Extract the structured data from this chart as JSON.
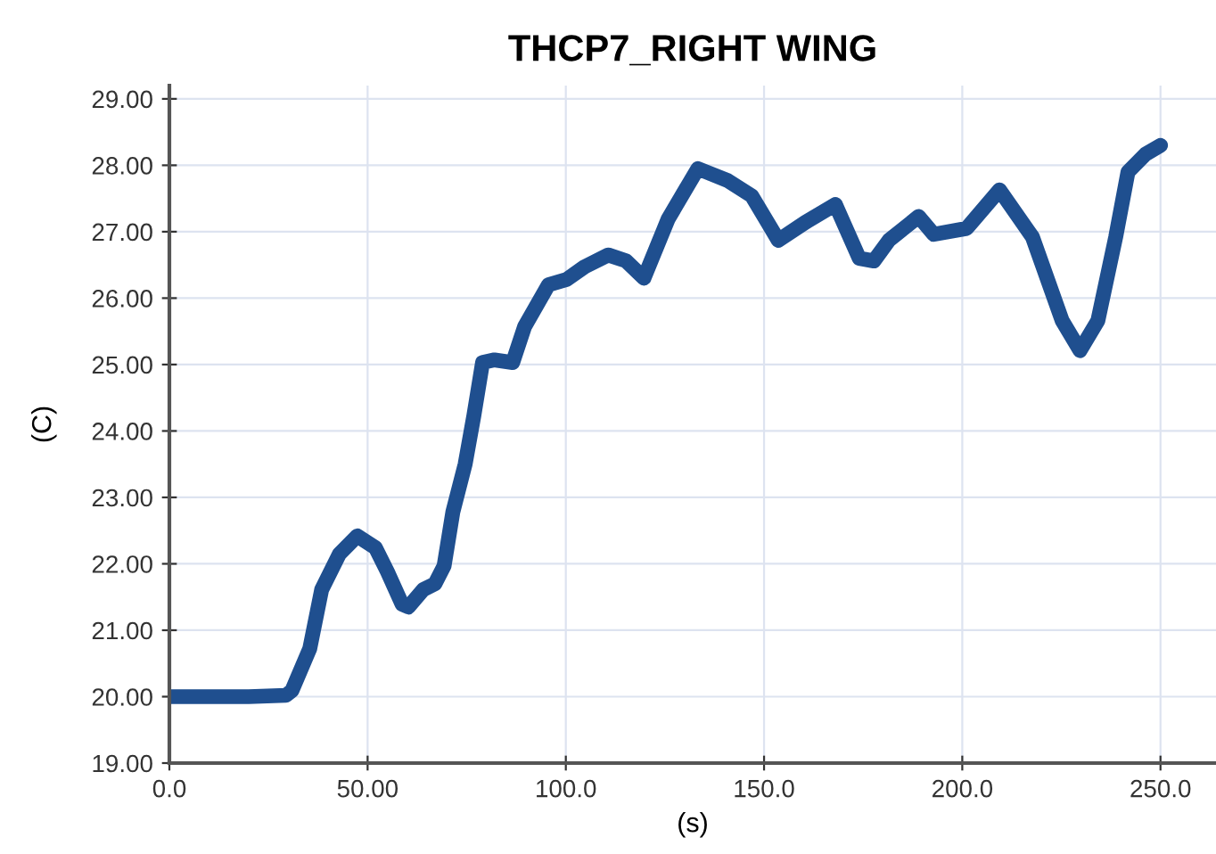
{
  "chart_data": {
    "type": "line",
    "title": "THCP7_RIGHT WING",
    "xlabel": "(s)",
    "ylabel": "(C)",
    "x": [
      0,
      10,
      20,
      29.4,
      30.9,
      35.4,
      38.4,
      42.9,
      47.4,
      52,
      55,
      58.7,
      60.3,
      64,
      67,
      69.3,
      71.5,
      74.6,
      76.8,
      79,
      82,
      86.6,
      89.6,
      95.6,
      100.2,
      104.7,
      110.7,
      115.2,
      119.7,
      125.8,
      133.3,
      140.8,
      146.9,
      153.6,
      160.4,
      168,
      174,
      177.7,
      181.5,
      189,
      192.8,
      201.1,
      209.4,
      217.7,
      225.2,
      229.7,
      234.2,
      238.7,
      241.8,
      246.3,
      250
    ],
    "series": [
      {
        "color": "#1f4f8f",
        "values": [
          20.0,
          20.0,
          20.0,
          20.02,
          20.09,
          20.72,
          21.61,
          22.15,
          22.42,
          22.24,
          21.88,
          21.39,
          21.35,
          21.61,
          21.7,
          21.97,
          22.78,
          23.5,
          24.23,
          25.03,
          25.07,
          25.03,
          25.57,
          26.2,
          26.28,
          26.47,
          26.65,
          26.56,
          26.3,
          27.19,
          27.95,
          27.77,
          27.54,
          26.87,
          27.14,
          27.41,
          26.6,
          26.56,
          26.87,
          27.23,
          26.96,
          27.05,
          27.63,
          26.92,
          25.66,
          25.21,
          25.66,
          26.92,
          27.9,
          28.17,
          28.3
        ]
      }
    ],
    "xlim": [
      0,
      264
    ],
    "ylim": [
      19,
      29.2
    ],
    "xticks": [
      {
        "value": 0,
        "label": "0.0"
      },
      {
        "value": 50,
        "label": "50.00"
      },
      {
        "value": 100,
        "label": "100.0"
      },
      {
        "value": 150,
        "label": "150.0"
      },
      {
        "value": 200,
        "label": "200.0"
      },
      {
        "value": 250,
        "label": "250.0"
      }
    ],
    "yticks": [
      {
        "value": 19,
        "label": "19.00"
      },
      {
        "value": 20,
        "label": "20.00"
      },
      {
        "value": 21,
        "label": "21.00"
      },
      {
        "value": 22,
        "label": "22.00"
      },
      {
        "value": 23,
        "label": "23.00"
      },
      {
        "value": 24,
        "label": "24.00"
      },
      {
        "value": 25,
        "label": "25.00"
      },
      {
        "value": 26,
        "label": "26.00"
      },
      {
        "value": 27,
        "label": "27.00"
      },
      {
        "value": 28,
        "label": "28.00"
      },
      {
        "value": 29,
        "label": "29.00"
      }
    ],
    "grid": true,
    "line_style": "solid"
  }
}
